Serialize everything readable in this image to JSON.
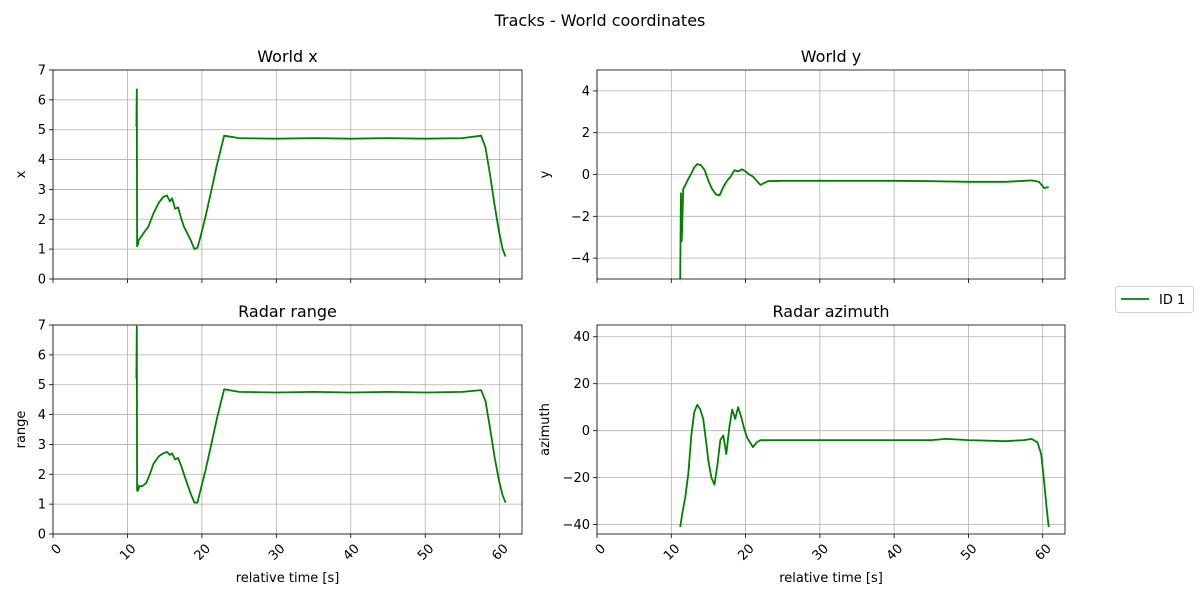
{
  "chart_data": {
    "title": "Tracks - World coordinates",
    "type": "line",
    "legend": {
      "placement": "right-center",
      "entries": [
        "ID 1"
      ]
    },
    "series_color": "#008000",
    "grid": true,
    "panels": [
      {
        "id": "world-x",
        "title": "World x",
        "xlabel": "",
        "ylabel": "x",
        "xlim": [
          0,
          63
        ],
        "ylim": [
          0,
          7
        ],
        "xticks": [
          0,
          10,
          20,
          30,
          40,
          50,
          60
        ],
        "yticks": [
          0,
          1,
          2,
          3,
          4,
          5,
          6,
          7
        ],
        "show_xticklabels": false,
        "series": [
          {
            "name": "ID 1",
            "x": [
              11.2,
              11.25,
              11.3,
              11.35,
              11.4,
              11.5,
              11.8,
              12.2,
              12.8,
              13.5,
              14.2,
              14.8,
              15.3,
              15.7,
              16.0,
              16.4,
              16.8,
              17.2,
              17.6,
              18.0,
              18.5,
              19.0,
              19.4,
              19.8,
              20.5,
              21.3,
              22.0,
              22.6,
              23.0,
              25,
              30,
              35,
              40,
              45,
              50,
              55,
              57.5,
              58.1,
              58.7,
              59.3,
              59.9,
              60.4,
              60.8
            ],
            "y": [
              5.1,
              6.35,
              1.1,
              1.25,
              1.15,
              1.3,
              1.4,
              1.55,
              1.75,
              2.2,
              2.55,
              2.75,
              2.8,
              2.6,
              2.7,
              2.35,
              2.4,
              2.05,
              1.75,
              1.55,
              1.3,
              1.0,
              1.05,
              1.4,
              2.1,
              3.0,
              3.8,
              4.4,
              4.8,
              4.72,
              4.7,
              4.72,
              4.7,
              4.72,
              4.7,
              4.72,
              4.8,
              4.4,
              3.5,
              2.5,
              1.6,
              1.0,
              0.75
            ]
          }
        ]
      },
      {
        "id": "world-y",
        "title": "World y",
        "xlabel": "",
        "ylabel": "y",
        "xlim": [
          0,
          63
        ],
        "ylim": [
          -5,
          5
        ],
        "xticks": [
          0,
          10,
          20,
          30,
          40,
          50,
          60
        ],
        "yticks": [
          -4,
          -2,
          0,
          2,
          4
        ],
        "show_xticklabels": false,
        "series": [
          {
            "name": "ID 1",
            "x": [
              11.2,
              11.3,
              11.4,
              11.6,
              11.9,
              12.3,
              12.7,
              13.1,
              13.5,
              14.0,
              14.5,
              15.0,
              15.5,
              16.0,
              16.5,
              17.0,
              17.5,
              18.0,
              18.5,
              19.0,
              19.5,
              20.0,
              20.5,
              21.0,
              21.5,
              22.0,
              23.0,
              25,
              30,
              35,
              40,
              45,
              50,
              55,
              57.5,
              58.5,
              59.5,
              60.2,
              60.8
            ],
            "y": [
              -5.0,
              -0.9,
              -3.2,
              -0.7,
              -0.5,
              -0.2,
              0.05,
              0.35,
              0.5,
              0.45,
              0.2,
              -0.3,
              -0.7,
              -0.95,
              -1.0,
              -0.6,
              -0.3,
              -0.1,
              0.2,
              0.15,
              0.25,
              0.15,
              0.0,
              -0.1,
              -0.3,
              -0.5,
              -0.32,
              -0.3,
              -0.3,
              -0.3,
              -0.3,
              -0.32,
              -0.35,
              -0.35,
              -0.3,
              -0.28,
              -0.35,
              -0.65,
              -0.6
            ]
          }
        ]
      },
      {
        "id": "radar-range",
        "title": "Radar range",
        "xlabel": "relative time [s]",
        "ylabel": "range",
        "xlim": [
          0,
          63
        ],
        "ylim": [
          0,
          7
        ],
        "xticks": [
          0,
          10,
          20,
          30,
          40,
          50,
          60
        ],
        "yticks": [
          0,
          1,
          2,
          3,
          4,
          5,
          6,
          7
        ],
        "show_xticklabels": true,
        "series": [
          {
            "name": "ID 1",
            "x": [
              11.2,
              11.25,
              11.3,
              11.35,
              11.4,
              11.6,
              12.0,
              12.5,
              13.0,
              13.5,
              14.2,
              14.8,
              15.3,
              15.7,
              16.0,
              16.4,
              16.8,
              17.2,
              17.6,
              18.0,
              18.5,
              19.0,
              19.4,
              19.8,
              20.5,
              21.3,
              22.0,
              22.6,
              23.0,
              25,
              30,
              35,
              40,
              45,
              50,
              55,
              57.5,
              58.1,
              58.7,
              59.3,
              59.9,
              60.4,
              60.8
            ],
            "y": [
              5.2,
              6.95,
              1.45,
              1.65,
              1.45,
              1.6,
              1.6,
              1.7,
              2.0,
              2.35,
              2.6,
              2.7,
              2.75,
              2.65,
              2.7,
              2.5,
              2.55,
              2.3,
              2.0,
              1.7,
              1.35,
              1.05,
              1.05,
              1.45,
              2.15,
              3.05,
              3.85,
              4.45,
              4.85,
              4.76,
              4.74,
              4.76,
              4.74,
              4.76,
              4.74,
              4.76,
              4.82,
              4.45,
              3.55,
              2.6,
              1.8,
              1.3,
              1.05
            ]
          }
        ]
      },
      {
        "id": "radar-azimuth",
        "title": "Radar azimuth",
        "xlabel": "relative time [s]",
        "ylabel": "azimuth",
        "xlim": [
          0,
          63
        ],
        "ylim": [
          -44,
          45
        ],
        "xticks": [
          0,
          10,
          20,
          30,
          40,
          50,
          60
        ],
        "yticks": [
          -40,
          -20,
          0,
          20,
          40
        ],
        "show_xticklabels": true,
        "series": [
          {
            "name": "ID 1",
            "x": [
              11.2,
              11.5,
              11.9,
              12.3,
              12.7,
              13.1,
              13.5,
              13.9,
              14.3,
              14.7,
              15.0,
              15.4,
              15.8,
              16.2,
              16.6,
              17.0,
              17.4,
              17.8,
              18.2,
              18.6,
              19.0,
              19.4,
              19.8,
              20.2,
              20.6,
              21.0,
              21.5,
              22.0,
              23.0,
              25,
              30,
              35,
              40,
              45,
              47,
              50,
              55,
              57.5,
              58.5,
              59.3,
              59.8,
              60.2,
              60.5,
              60.8
            ],
            "y": [
              -41,
              -35,
              -28,
              -18,
              -2,
              8,
              11,
              9,
              5,
              -5,
              -13,
              -20,
              -23,
              -15,
              -4,
              -2,
              -10,
              1,
              9,
              5,
              10,
              6,
              1,
              -3,
              -5,
              -7,
              -5,
              -4,
              -4,
              -4,
              -4,
              -4,
              -4,
              -4,
              -3.5,
              -4,
              -4.5,
              -4,
              -3.5,
              -5,
              -10,
              -22,
              -32,
              -41
            ]
          }
        ]
      }
    ]
  }
}
